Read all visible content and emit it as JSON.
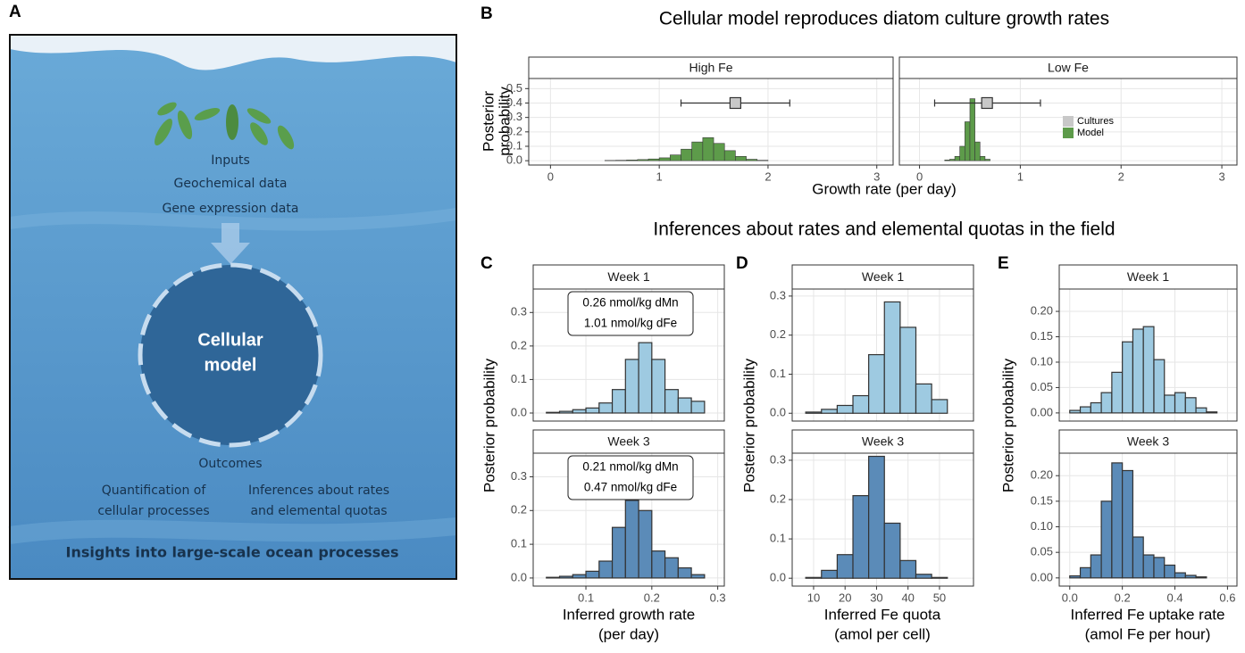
{
  "panel_labels": [
    "A",
    "B",
    "C",
    "D",
    "E"
  ],
  "diagram": {
    "inputs": "Inputs",
    "input_items": [
      "Geochemical data",
      "Gene expression data"
    ],
    "center": [
      "Cellular",
      "model"
    ],
    "outcomes": "Outcomes",
    "outcome_items": [
      [
        "Quantification of",
        "cellular processes"
      ],
      [
        "Inferences about rates",
        "and elemental quotas"
      ]
    ],
    "footer": "Insights into large-scale ocean processes"
  },
  "section_title": "Inferences about rates and elemental quotas in the field",
  "chart_data": [
    {
      "type": "histogram",
      "title": "Cellular model reproduces diatom culture growth rates",
      "xlabel": "Growth rate (per day)",
      "ylabel": [
        "Posterior",
        "probability"
      ],
      "xlim": [
        -0.2,
        3.15
      ],
      "xticks": [
        0,
        1,
        2,
        3
      ],
      "ylim": [
        -0.03,
        0.57
      ],
      "yticks": [
        {
          "value": 0,
          "label": "0.0"
        },
        0.1,
        0.2,
        0.3,
        0.4,
        0.5
      ],
      "grid": true,
      "legend": [
        {
          "name": "Cultures",
          "color": "#c8c8c8"
        },
        {
          "name": "Model",
          "color": "#5d9b4a"
        }
      ],
      "facets": [
        {
          "name": "High Fe",
          "bins": [
            0.5,
            0.6,
            0.7,
            0.8,
            0.9,
            1.0,
            1.1,
            1.2,
            1.3,
            1.4,
            1.5,
            1.6,
            1.7,
            1.8,
            1.9,
            2.0
          ],
          "counts": [
            0.002,
            0.003,
            0.005,
            0.008,
            0.012,
            0.02,
            0.04,
            0.08,
            0.13,
            0.16,
            0.12,
            0.07,
            0.03,
            0.01,
            0.003
          ],
          "point": {
            "value": 1.7,
            "low": 1.2,
            "high": 2.2,
            "y": 0.4
          }
        },
        {
          "name": "Low Fe",
          "bins": [
            0.25,
            0.3,
            0.35,
            0.4,
            0.45,
            0.5,
            0.55,
            0.6,
            0.65,
            0.7
          ],
          "counts": [
            0.005,
            0.01,
            0.03,
            0.1,
            0.27,
            0.43,
            0.13,
            0.03,
            0.01
          ],
          "point": {
            "value": 0.67,
            "low": 0.15,
            "high": 1.2,
            "y": 0.4
          }
        }
      ]
    },
    {
      "type": "histogram",
      "xlabel": [
        "Inferred growth rate",
        "(per day)"
      ],
      "ylabel": "Posterior probability",
      "xlim": [
        0.02,
        0.31
      ],
      "xticks": [
        0.1,
        0.2,
        0.3
      ],
      "ylim": [
        -0.024,
        0.37
      ],
      "yticks": [
        {
          "value": 0,
          "label": "0.0"
        },
        0.1,
        0.2,
        0.3
      ],
      "grid": true,
      "facets": [
        {
          "name": "Week 1",
          "color": "#9ecae1",
          "bins": [
            0.04,
            0.06,
            0.08,
            0.1,
            0.12,
            0.14,
            0.16,
            0.18,
            0.2,
            0.22,
            0.24,
            0.26,
            0.28
          ],
          "counts": [
            0.002,
            0.005,
            0.01,
            0.015,
            0.03,
            0.07,
            0.16,
            0.21,
            0.16,
            0.07,
            0.045,
            0.035
          ],
          "annotation": [
            "0.26 nmol/kg dMn",
            "1.01 nmol/kg dFe"
          ]
        },
        {
          "name": "Week 3",
          "color": "#5b8bb8",
          "bins": [
            0.04,
            0.06,
            0.08,
            0.1,
            0.12,
            0.14,
            0.16,
            0.18,
            0.2,
            0.22,
            0.24,
            0.26,
            0.28
          ],
          "counts": [
            0.002,
            0.005,
            0.01,
            0.02,
            0.05,
            0.15,
            0.23,
            0.2,
            0.08,
            0.06,
            0.03,
            0.01
          ],
          "annotation": [
            "0.21 nmol/kg dMn",
            "0.47 nmol/kg dFe"
          ]
        }
      ]
    },
    {
      "type": "histogram",
      "xlabel": [
        "Inferred Fe quota",
        "(amol per cell)"
      ],
      "ylabel": "Posterior probability",
      "xlim": [
        3.2,
        60.8
      ],
      "xticks": [
        10,
        20,
        30,
        40,
        50
      ],
      "ylim": [
        -0.02,
        0.318
      ],
      "yticks": [
        {
          "value": 0,
          "label": "0.0"
        },
        0.1,
        0.2,
        0.3
      ],
      "grid": true,
      "facets": [
        {
          "name": "Week 1",
          "color": "#9ecae1",
          "bins": [
            7.5,
            12.5,
            17.5,
            22.5,
            27.5,
            32.5,
            37.5,
            42.5,
            47.5,
            52.5
          ],
          "counts": [
            0.003,
            0.01,
            0.02,
            0.045,
            0.15,
            0.285,
            0.22,
            0.075,
            0.035
          ]
        },
        {
          "name": "Week 3",
          "color": "#5b8bb8",
          "bins": [
            7.5,
            12.5,
            17.5,
            22.5,
            27.5,
            32.5,
            37.5,
            42.5,
            47.5,
            52.5
          ],
          "counts": [
            0.002,
            0.02,
            0.06,
            0.21,
            0.31,
            0.14,
            0.045,
            0.01,
            0.002
          ]
        }
      ]
    },
    {
      "type": "histogram",
      "xlabel": [
        "Inferred Fe uptake rate",
        "(amol Fe per hour)"
      ],
      "ylabel": "Posterior probability",
      "xlim": [
        -0.04,
        0.636
      ],
      "xticks": [
        {
          "value": 0,
          "label": "0.0"
        },
        0.2,
        0.4,
        0.6
      ],
      "ylim": [
        -0.016,
        0.244
      ],
      "yticks": [
        {
          "value": 0,
          "label": "0.00"
        },
        {
          "value": 0.05,
          "label": "0.05"
        },
        {
          "value": 0.1,
          "label": "0.10"
        },
        {
          "value": 0.15,
          "label": "0.15"
        },
        {
          "value": 0.2,
          "label": "0.20"
        }
      ],
      "grid": true,
      "facets": [
        {
          "name": "Week 1",
          "color": "#9ecae1",
          "bins": [
            0,
            0.04,
            0.08,
            0.12,
            0.16,
            0.2,
            0.24,
            0.28,
            0.32,
            0.36,
            0.4,
            0.44,
            0.48,
            0.52,
            0.56
          ],
          "counts": [
            0.005,
            0.012,
            0.02,
            0.04,
            0.08,
            0.14,
            0.165,
            0.17,
            0.105,
            0.035,
            0.04,
            0.03,
            0.01,
            0.002
          ]
        },
        {
          "name": "Week 3",
          "color": "#5b8bb8",
          "bins": [
            0,
            0.04,
            0.08,
            0.12,
            0.16,
            0.2,
            0.24,
            0.28,
            0.32,
            0.36,
            0.4,
            0.44,
            0.48,
            0.52
          ],
          "counts": [
            0.004,
            0.02,
            0.045,
            0.15,
            0.225,
            0.21,
            0.08,
            0.045,
            0.04,
            0.025,
            0.01,
            0.005,
            0.002
          ]
        }
      ]
    }
  ]
}
